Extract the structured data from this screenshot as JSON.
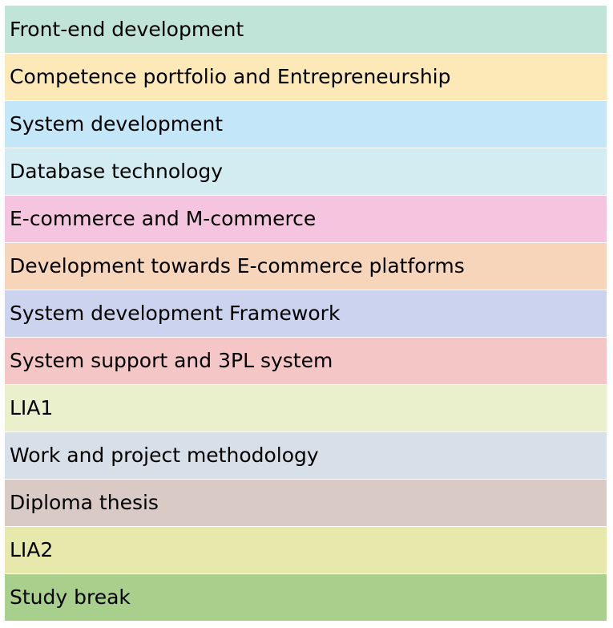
{
  "rows": [
    {
      "label": "Front-end development",
      "color": "#c0e4d8"
    },
    {
      "label": "Competence portfolio and Entrepreneurship",
      "color": "#fde8b7"
    },
    {
      "label": "System development",
      "color": "#c3e6f8"
    },
    {
      "label": "Database technology",
      "color": "#d3ecf2"
    },
    {
      "label": "E-commerce and M-commerce",
      "color": "#f5c4de"
    },
    {
      "label": "Development towards E-commerce platforms",
      "color": "#f6d5bb"
    },
    {
      "label": "System development Framework",
      "color": "#cbd3ee"
    },
    {
      "label": "System support and 3PL system",
      "color": "#f4c7c6"
    },
    {
      "label": "LIA1",
      "color": "#e9f0cb"
    },
    {
      "label": "Work and project methodology",
      "color": "#d7e0e8"
    },
    {
      "label": "Diploma thesis",
      "color": "#d9cac5"
    },
    {
      "label": "LIA2",
      "color": "#e6e9ab"
    },
    {
      "label": "Study break",
      "color": "#a8cf8c"
    }
  ]
}
